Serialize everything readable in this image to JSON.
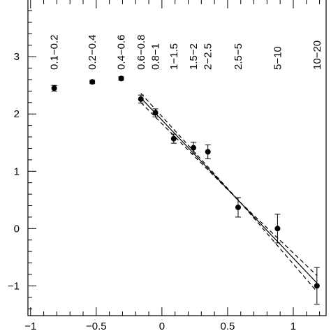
{
  "chart_data": {
    "type": "scatter",
    "xlim": [
      -1.02,
      1.25
    ],
    "ylim": [
      -1.52,
      3.99
    ],
    "xticks": [
      {
        "value": -1,
        "label": "−1"
      },
      {
        "value": -0.5,
        "label": "−0.5"
      },
      0,
      0.5,
      1
    ],
    "yticks": [
      {
        "value": -1,
        "label": "−1"
      },
      0,
      1,
      2,
      3
    ],
    "xminor_ticks": [
      -0.9,
      -0.8,
      -0.7,
      -0.6,
      -0.4,
      -0.3,
      -0.2,
      -0.1,
      0.1,
      0.2,
      0.3,
      0.4,
      0.6,
      0.7,
      0.8,
      0.9,
      1.1,
      1.2
    ],
    "yminor_ticks": [
      -1.4,
      -1.2,
      -0.8,
      -0.6,
      -0.4,
      -0.2,
      0.2,
      0.4,
      0.6,
      0.8,
      1.2,
      1.4,
      1.6,
      1.8,
      2.2,
      2.4,
      2.6,
      2.8,
      3.2,
      3.4,
      3.6,
      3.8
    ],
    "points": {
      "color": "#000000",
      "x": [
        -0.82,
        -0.53,
        -0.31,
        -0.16,
        -0.05,
        0.09,
        0.24,
        0.35,
        0.58,
        0.88,
        1.18
      ],
      "values": [
        2.45,
        2.56,
        2.62,
        2.26,
        2.02,
        1.57,
        1.41,
        1.34,
        0.37,
        0.0,
        -1.0
      ],
      "errors": [
        0.05,
        0.03,
        0.03,
        0.07,
        0.07,
        0.08,
        0.1,
        0.12,
        0.17,
        0.25,
        0.32
      ],
      "bin_labels": [
        "0.1−0.2",
        "0.2−0.4",
        "0.4−0.6",
        "0.6−0.8",
        "0.8−1",
        "1−1.5",
        "1.5−2",
        "2−2.5",
        "2.5−5",
        "5−10",
        "10−20"
      ]
    },
    "lines": [
      {
        "style": "solid",
        "x": [
          -0.16,
          1.18
        ],
        "values": [
          2.28,
          -0.95
        ]
      },
      {
        "style": "dashed",
        "x": [
          -0.16,
          0.6,
          1.18
        ],
        "values": [
          2.36,
          0.45,
          -0.82
        ]
      },
      {
        "style": "dashed",
        "x": [
          -0.16,
          0.6,
          1.18
        ],
        "values": [
          2.2,
          0.45,
          -1.1
        ]
      }
    ]
  }
}
